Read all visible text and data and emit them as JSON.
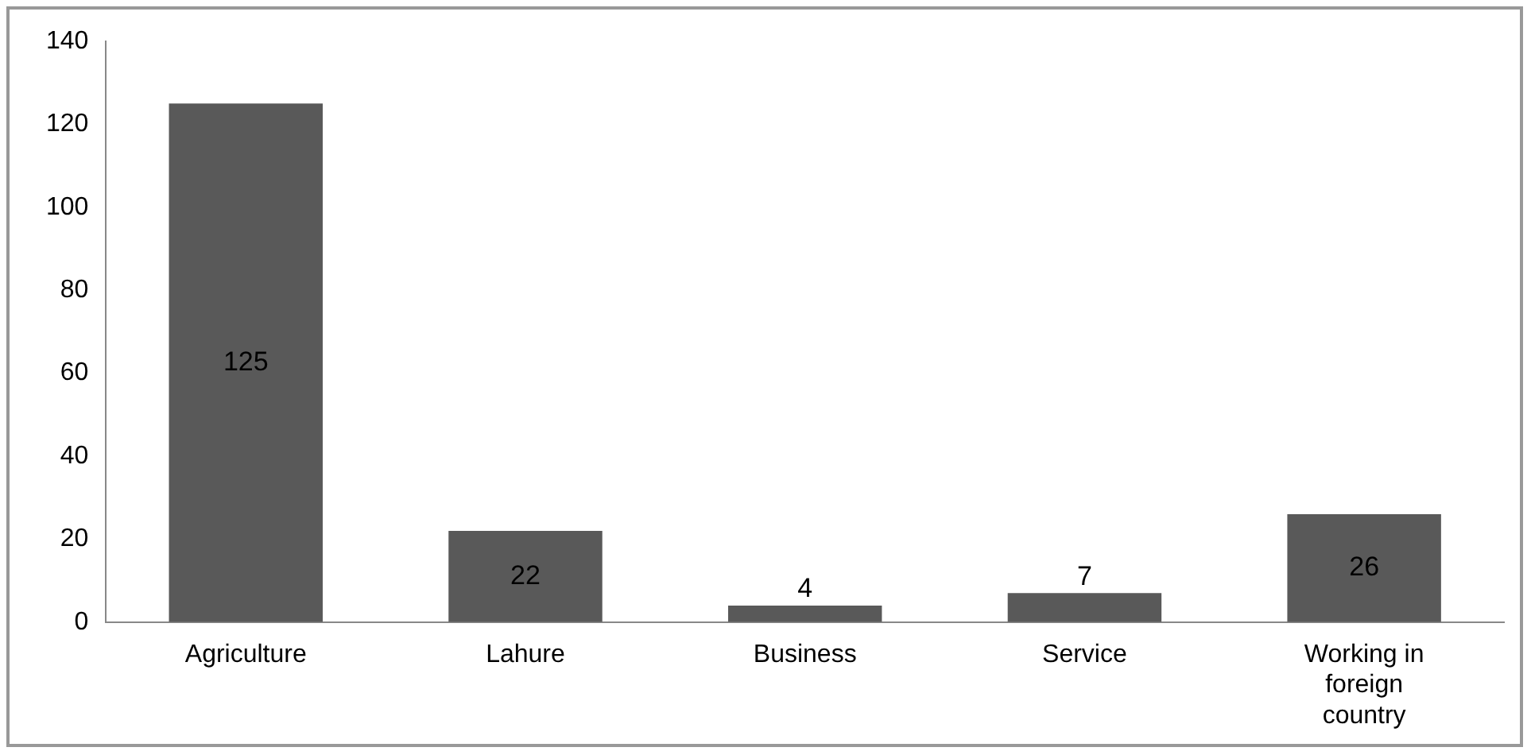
{
  "chart_data": {
    "type": "bar",
    "categories": [
      "Agriculture",
      "Lahure",
      "Business",
      "Service",
      "Working in foreign country"
    ],
    "values": [
      125,
      22,
      4,
      7,
      26
    ],
    "color": "#595959",
    "ylim": [
      0,
      140
    ],
    "yticks": [
      0,
      20,
      40,
      60,
      80,
      100,
      120,
      140
    ],
    "grid": false,
    "data_labels": true
  }
}
